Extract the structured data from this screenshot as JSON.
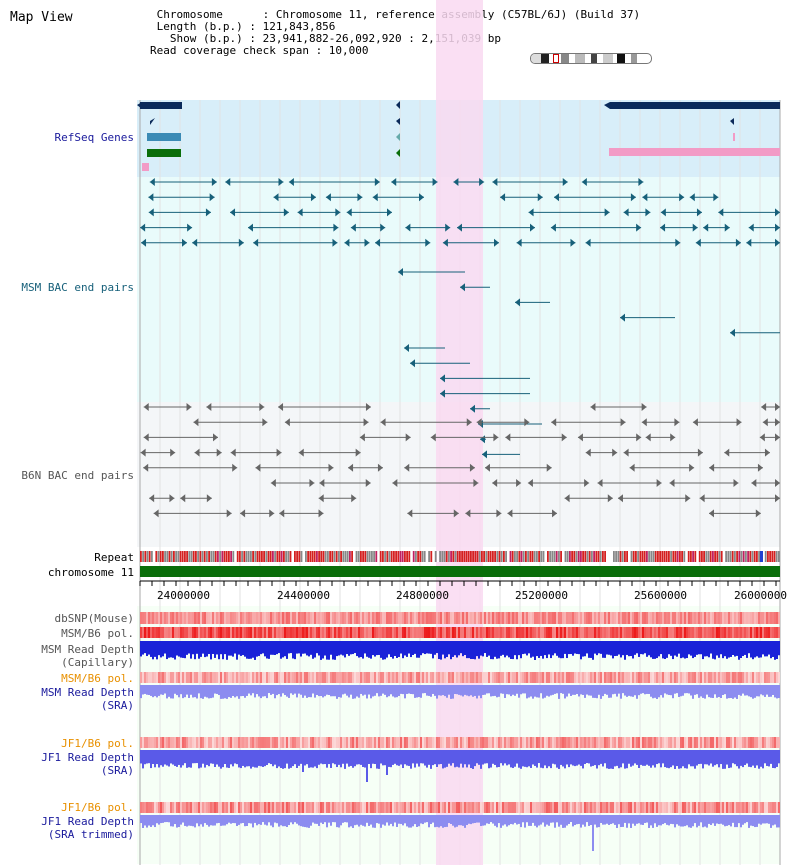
{
  "header": {
    "title": "Map View",
    "lines": [
      " Chromosome      : Chromosome 11, reference assembly (C57BL/6J) (Build 37)",
      " Length (b.p.) : 121,843,856",
      "   Show (b.p.) : 23,941,882-26,092,920 : 2,151,039 bp",
      "Read coverage check span : 10,000"
    ]
  },
  "tracks": {
    "refseq": "RefSeq Genes",
    "msm_bac": "MSM BAC end pairs",
    "b6n_bac": "B6N BAC end pairs",
    "repeat": "Repeat",
    "chromosome": "chromosome 11",
    "dbsnp": "dbSNP(Mouse)",
    "msm_pol": "MSM/B6 pol.",
    "msm_depth_cap_1": "MSM Read Depth",
    "msm_depth_cap_2": "(Capillary)",
    "msm_pol2": "MSM/B6 pol.",
    "msm_depth_sra_1": "MSM Read Depth",
    "msm_depth_sra_2": "(SRA)",
    "jf1_pol": "JF1/B6 pol.",
    "jf1_depth_sra_1": "JF1 Read Depth",
    "jf1_depth_sra_2": "(SRA)",
    "jf1_pol2": "JF1/B6 pol.",
    "jf1_depth_trim_1": "JF1 Read Depth",
    "jf1_depth_trim_2": "(SRA trimmed)"
  },
  "ruler": {
    "ticks": [
      "24000000",
      "24400000",
      "24800000",
      "25200000",
      "25600000",
      "26000000"
    ]
  },
  "colors": {
    "refseq_label": "#1a1a9c",
    "msm_bac_label": "#17607a",
    "b6n_bac_label": "#555555",
    "msm_label": "#1a1a9c",
    "pol_label": "#e89000",
    "highlight": "#f9d9f1"
  }
}
